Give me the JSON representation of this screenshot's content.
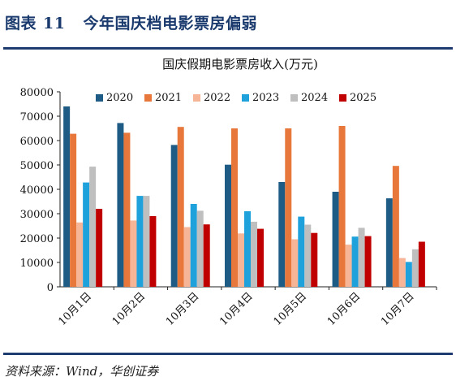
{
  "figure": {
    "label": "图表",
    "number": "11",
    "title": "今年国庆档电影票房偏弱"
  },
  "source": "资料来源：Wind，华创证券",
  "chart_data": {
    "type": "bar",
    "title": "国庆假期电影票房收入(万元)",
    "categories": [
      "10月1日",
      "10月2日",
      "10月3日",
      "10月4日",
      "10月5日",
      "10月6日",
      "10月7日"
    ],
    "series": [
      {
        "name": "2020",
        "color": "#1f5c85",
        "values": [
          74000,
          67200,
          58200,
          50100,
          43000,
          39000,
          36300
        ]
      },
      {
        "name": "2021",
        "color": "#e8773b",
        "values": [
          62800,
          63200,
          65600,
          65000,
          65000,
          66000,
          49600
        ]
      },
      {
        "name": "2022",
        "color": "#f6b596",
        "values": [
          26400,
          27200,
          24500,
          21900,
          19500,
          17300,
          11800
        ]
      },
      {
        "name": "2023",
        "color": "#1fa1dc",
        "values": [
          42800,
          37300,
          34000,
          31000,
          28800,
          20600,
          10200
        ]
      },
      {
        "name": "2024",
        "color": "#bfbfbf",
        "values": [
          49300,
          37300,
          31200,
          26700,
          25500,
          24200,
          15400
        ]
      },
      {
        "name": "2025",
        "color": "#c00000",
        "values": [
          32000,
          29000,
          25600,
          23800,
          22100,
          20800,
          18500
        ]
      }
    ],
    "ylim": [
      0,
      80000
    ],
    "yticks": [
      0,
      10000,
      20000,
      30000,
      40000,
      50000,
      60000,
      70000,
      80000
    ],
    "grid": false,
    "legend": "top"
  }
}
